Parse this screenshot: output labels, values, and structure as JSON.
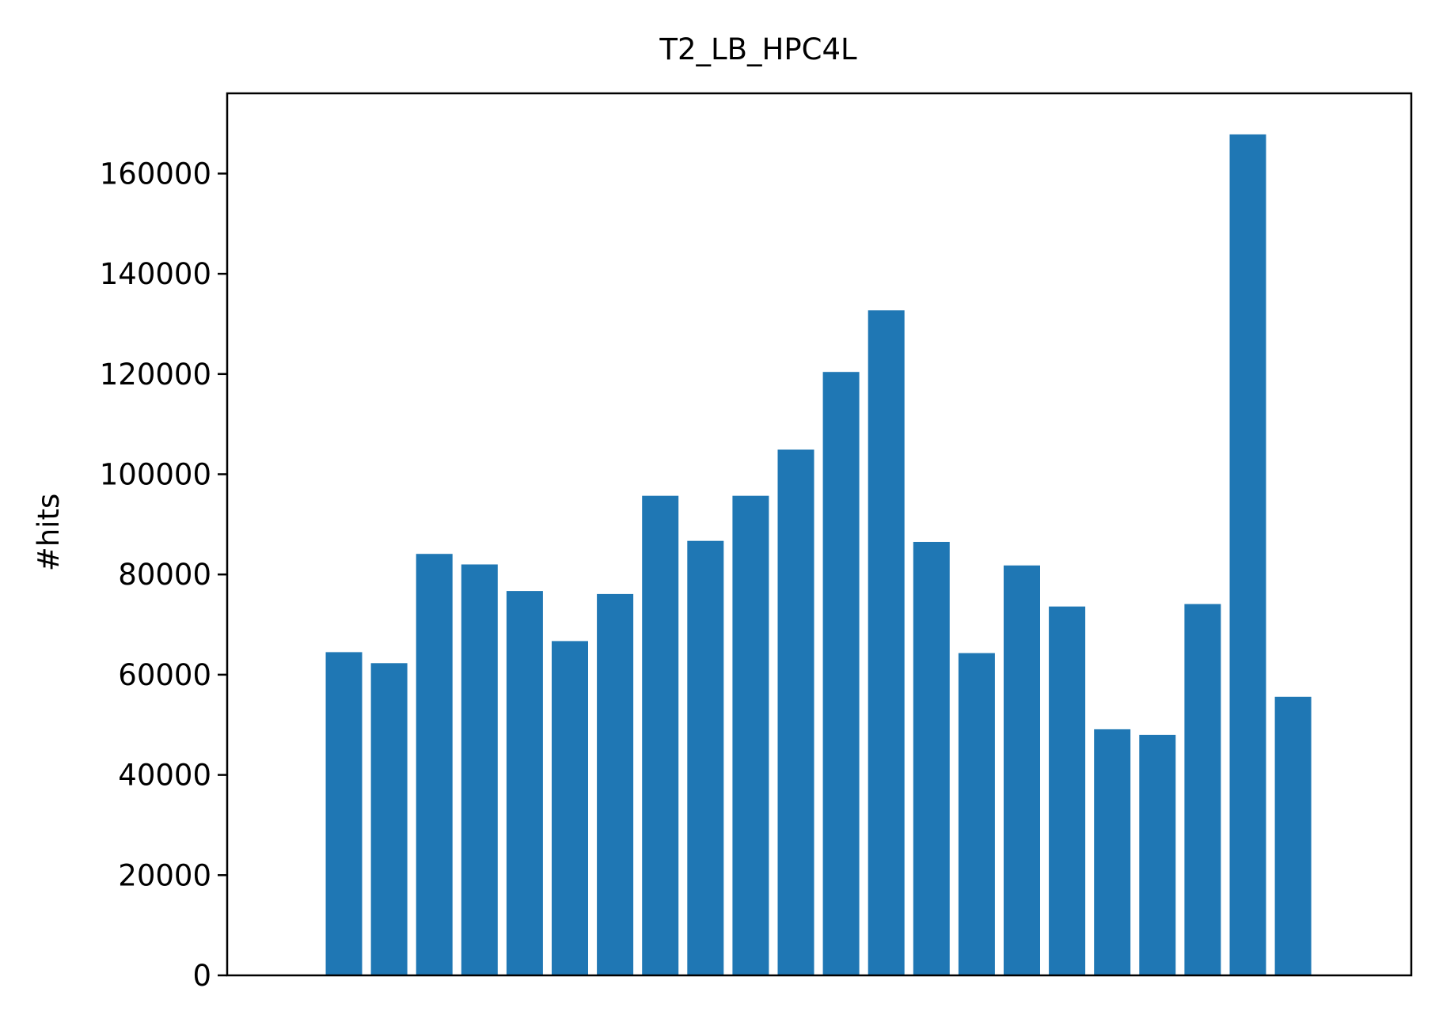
{
  "chart_data": {
    "type": "bar",
    "title": "T2_LB_HPC4L",
    "xlabel": "",
    "ylabel": "#hits",
    "ylim": [
      0,
      176000
    ],
    "yticks": [
      0,
      20000,
      40000,
      60000,
      80000,
      100000,
      120000,
      140000,
      160000
    ],
    "ytick_labels": [
      "0",
      "20000",
      "40000",
      "60000",
      "80000",
      "100000",
      "120000",
      "140000",
      "160000"
    ],
    "grid": false,
    "bar_color": "#1f77b4",
    "values": [
      64500,
      62300,
      84100,
      82000,
      76700,
      66700,
      76100,
      95700,
      86700,
      95700,
      104900,
      120400,
      132700,
      86500,
      64300,
      81800,
      73600,
      49100,
      48000,
      74100,
      167800,
      55600
    ]
  }
}
